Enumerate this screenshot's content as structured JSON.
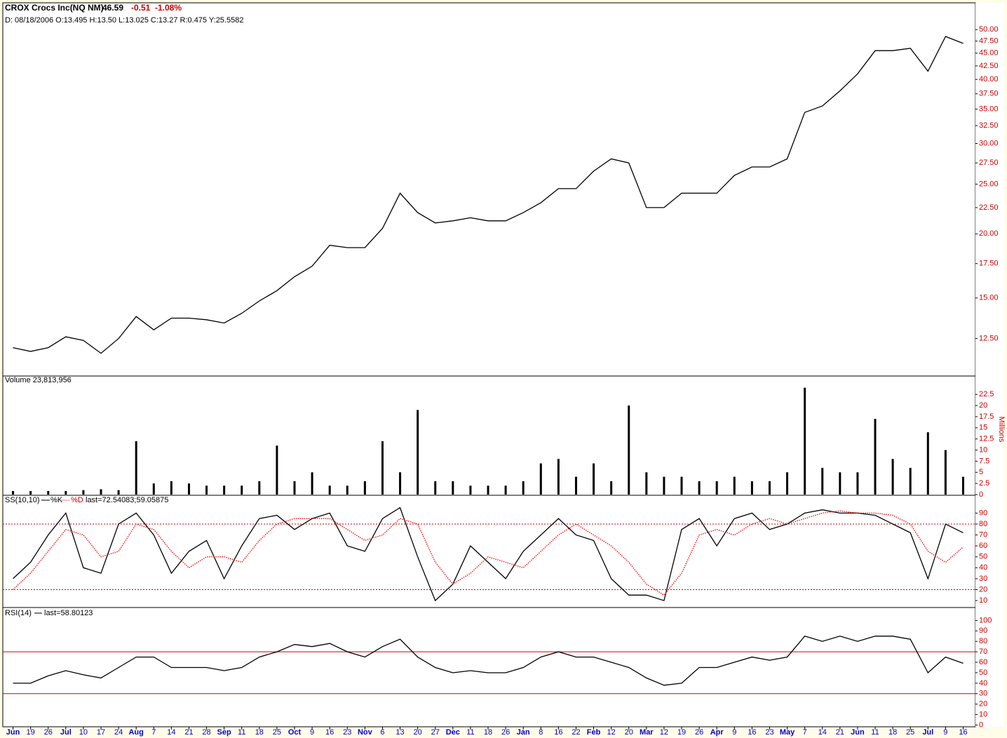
{
  "chart_data": [
    {
      "type": "line",
      "title": "CROX Crocs Inc(NQ NM)",
      "last": "46.59",
      "change": "-0.51",
      "change_pct": "-1.08%",
      "subtitle": "D: 08/18/2006 O:13.495 H:13.50 L:13.025 C:13.27 R:0.475 Y:25.5582",
      "log_scale": true,
      "ylim": [
        10.6,
        55.7
      ],
      "yticks": [
        {
          "value": 12.5,
          "label": "12.50"
        },
        {
          "value": 15,
          "label": "15.00"
        },
        {
          "value": 17.5,
          "label": "17.50"
        },
        {
          "value": 20,
          "label": "20.00"
        },
        {
          "value": 22.5,
          "label": "22.50"
        },
        {
          "value": 25,
          "label": "25.00"
        },
        {
          "value": 27.5,
          "label": "27.50"
        },
        {
          "value": 30,
          "label": "30.00"
        },
        {
          "value": 32.5,
          "label": "32.50"
        },
        {
          "value": 35,
          "label": "35.00"
        },
        {
          "value": 37.5,
          "label": "37.50"
        },
        {
          "value": 40,
          "label": "40.00"
        },
        {
          "value": 42.5,
          "label": "42.50"
        },
        {
          "value": 45,
          "label": "45.00"
        },
        {
          "value": 47.5,
          "label": "47.50"
        },
        {
          "value": 50,
          "label": "50.00"
        }
      ],
      "series": [
        {
          "color": "#000000",
          "values": [
            12.0,
            11.8,
            12.0,
            12.6,
            12.4,
            11.7,
            12.5,
            13.8,
            13.0,
            13.7,
            13.7,
            13.6,
            13.4,
            14.0,
            14.8,
            15.5,
            16.5,
            17.3,
            19.0,
            18.8,
            18.8,
            20.5,
            24.0,
            22.0,
            21.0,
            21.2,
            21.5,
            21.2,
            21.2,
            22.0,
            23.0,
            24.5,
            24.5,
            26.5,
            28.0,
            27.5,
            22.5,
            22.5,
            24.0,
            24.0,
            24.0,
            26.0,
            27.0,
            27.0,
            28.0,
            34.5,
            35.5,
            38.0,
            41.0,
            45.5,
            45.5,
            46.0,
            41.5,
            48.5,
            47.0
          ]
        }
      ]
    },
    {
      "type": "bar",
      "title": "Volume 23,813,956",
      "axis_label": "Millions",
      "ylim": [
        0,
        26
      ],
      "yticks": [
        0,
        2.5,
        5,
        7.5,
        10,
        12.5,
        15,
        17.5,
        20,
        22.5
      ],
      "series": [
        {
          "color": "#000000",
          "values": [
            0.8,
            0.8,
            0.8,
            0.8,
            1.0,
            1.2,
            1.0,
            12,
            2.5,
            3,
            2.5,
            2,
            2,
            2,
            3,
            11,
            3,
            5,
            2,
            2,
            3,
            12,
            5,
            19,
            3,
            3,
            2,
            2,
            2,
            3,
            7,
            8,
            4,
            7,
            3,
            20,
            5,
            4,
            4,
            3,
            3,
            4,
            3,
            3,
            5,
            24,
            6,
            5,
            5,
            17,
            8,
            6,
            14,
            10,
            4
          ]
        }
      ]
    },
    {
      "type": "line",
      "title": "SS(10,10)",
      "last": "last=72.54083;59.05875",
      "ylim": [
        3,
        105
      ],
      "yticks": [
        10,
        20,
        30,
        40,
        50,
        60,
        70,
        80,
        90
      ],
      "hlines": [
        20,
        80
      ],
      "hline_color": "#cc0000",
      "hline_dash": true,
      "series": [
        {
          "name": "%K",
          "color": "#000000",
          "dash": false,
          "values": [
            30,
            45,
            70,
            90,
            40,
            35,
            80,
            90,
            70,
            35,
            55,
            65,
            30,
            60,
            85,
            88,
            75,
            85,
            90,
            60,
            55,
            85,
            95,
            50,
            10,
            25,
            60,
            45,
            30,
            55,
            70,
            85,
            70,
            65,
            30,
            15,
            15,
            10,
            75,
            85,
            60,
            85,
            90,
            75,
            80,
            90,
            93,
            90,
            90,
            88,
            80,
            72,
            30,
            80,
            72
          ]
        },
        {
          "name": "%D",
          "color": "#ff0000",
          "dash": true,
          "values": [
            20,
            35,
            55,
            75,
            70,
            50,
            55,
            80,
            75,
            55,
            40,
            50,
            50,
            45,
            65,
            80,
            85,
            85,
            85,
            75,
            65,
            70,
            85,
            80,
            45,
            25,
            35,
            50,
            45,
            40,
            55,
            70,
            80,
            70,
            60,
            45,
            25,
            15,
            35,
            70,
            75,
            70,
            80,
            85,
            80,
            85,
            90,
            92,
            90,
            90,
            88,
            80,
            55,
            45,
            59
          ]
        }
      ]
    },
    {
      "type": "line",
      "title": "RSI(14)",
      "last": "last=58.80123",
      "ylim": [
        -1,
        111
      ],
      "yticks": [
        0,
        10,
        20,
        30,
        40,
        50,
        60,
        70,
        80,
        90,
        100
      ],
      "hlines": [
        30,
        70
      ],
      "hline_color": "#cc0000",
      "hline_dash": false,
      "categories": [
        "Jun",
        "19",
        "26",
        "Jul",
        "10",
        "17",
        "24",
        "Aug",
        "7",
        "14",
        "21",
        "28",
        "Sep",
        "11",
        "18",
        "25",
        "Oct",
        "9",
        "16",
        "23",
        "Nov",
        "6",
        "13",
        "20",
        "27",
        "Dec",
        "11",
        "18",
        "26",
        "Jan",
        "8",
        "16",
        "22",
        "Feb",
        "12",
        "20",
        "Mar",
        "12",
        "19",
        "26",
        "Apr",
        "9",
        "16",
        "23",
        "May",
        "7",
        "14",
        "21",
        "Jun",
        "11",
        "18",
        "25",
        "Jul",
        "9",
        "16"
      ],
      "series": [
        {
          "name": "",
          "color": "#000000",
          "values": [
            40,
            40,
            47,
            52,
            48,
            45,
            55,
            65,
            65,
            55,
            55,
            55,
            52,
            55,
            65,
            70,
            77,
            75,
            78,
            70,
            65,
            75,
            82,
            65,
            55,
            50,
            52,
            50,
            50,
            55,
            65,
            70,
            65,
            65,
            60,
            55,
            45,
            38,
            40,
            55,
            55,
            60,
            65,
            62,
            65,
            85,
            80,
            85,
            80,
            85,
            85,
            82,
            50,
            65,
            59
          ]
        }
      ]
    }
  ]
}
